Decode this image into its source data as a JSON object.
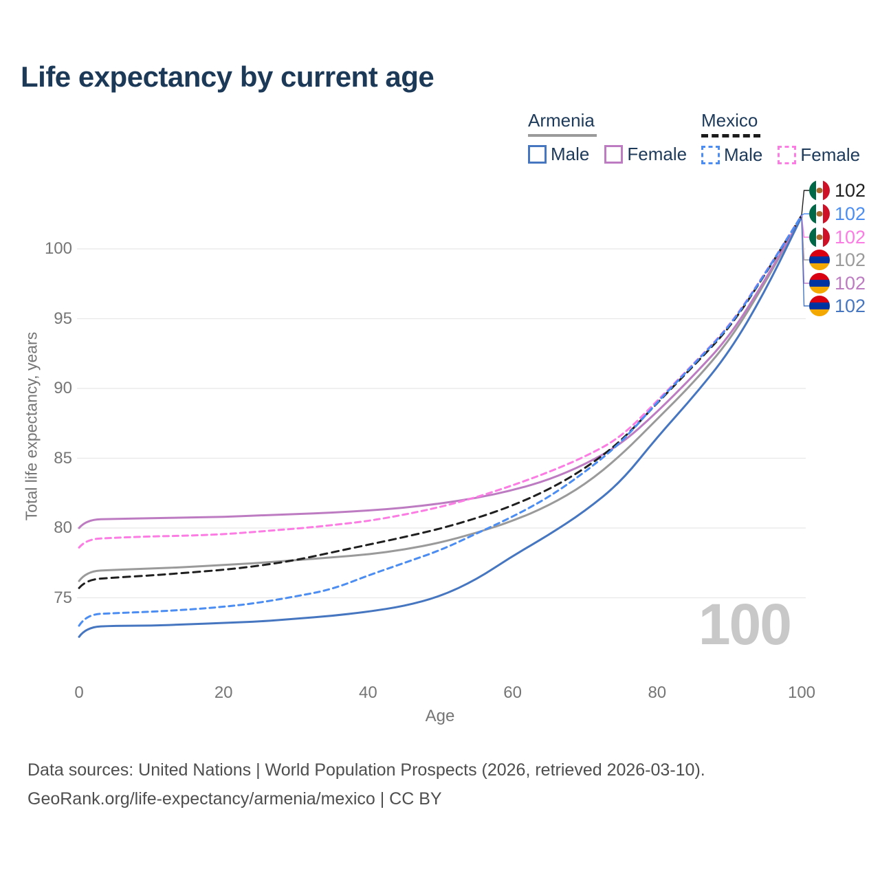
{
  "title": "Life expectancy by current age",
  "colors": {
    "title": "#1d3958",
    "legend_text": "#1d3a5a",
    "ticks": "#757575",
    "footer": "#4e4e4e",
    "watermark": "#c8c8c8",
    "gridline": "#e8e8e8"
  },
  "legend": {
    "groups": [
      {
        "country": "Armenia",
        "line_style": "solid",
        "underline_color": "#9a9a9a",
        "items": [
          {
            "label": "Male",
            "color": "#4676c0",
            "dashed": false
          },
          {
            "label": "Female",
            "color": "#bd7cc1",
            "dashed": false
          }
        ]
      },
      {
        "country": "Mexico",
        "line_style": "dashed",
        "underline_color": "#1c1c1c",
        "items": [
          {
            "label": "Male",
            "color": "#4c8df2",
            "dashed": true
          },
          {
            "label": "Female",
            "color": "#fb7ce2",
            "dashed": true
          }
        ]
      }
    ]
  },
  "chart_data": {
    "type": "line",
    "title": "Life expectancy by current age",
    "xlabel": "Age",
    "ylabel": "Total life expectancy, years",
    "xlim": [
      0,
      100
    ],
    "ylim": [
      71,
      103.5
    ],
    "xticks": [
      "0",
      "20",
      "40",
      "60",
      "80",
      "100"
    ],
    "xtick_values": [
      0,
      20,
      40,
      60,
      80,
      100
    ],
    "yticks": [
      "100",
      "95",
      "90",
      "85",
      "80",
      "75"
    ],
    "ytick_values": [
      100,
      95,
      90,
      85,
      80,
      75
    ],
    "grid": "horizontal-only",
    "legend_position": "top-right",
    "watermark": "100",
    "x": [
      0,
      1,
      5,
      10,
      15,
      20,
      25,
      30,
      35,
      40,
      45,
      50,
      55,
      60,
      65,
      70,
      75,
      80,
      85,
      90,
      95,
      100
    ],
    "series": [
      {
        "name": "Armenia Both sexes",
        "country": "Armenia",
        "sex": "both",
        "color": "#9a9a9a",
        "dashed": false,
        "values": [
          76.2,
          76.9,
          77.0,
          77.1,
          77.2,
          77.35,
          77.5,
          77.7,
          77.9,
          78.1,
          78.45,
          78.95,
          79.65,
          80.5,
          81.6,
          83.1,
          85.2,
          87.8,
          90.4,
          93.4,
          97.6,
          102.3
        ]
      },
      {
        "name": "Armenia Female",
        "country": "Armenia",
        "sex": "female",
        "color": "#bd7cc1",
        "dashed": false,
        "values": [
          80.0,
          80.6,
          80.65,
          80.7,
          80.75,
          80.8,
          80.9,
          81.0,
          81.1,
          81.25,
          81.45,
          81.75,
          82.15,
          82.7,
          83.45,
          84.55,
          86.0,
          88.3,
          90.9,
          93.7,
          97.8,
          102.3
        ]
      },
      {
        "name": "Armenia Male",
        "country": "Armenia",
        "sex": "male",
        "color": "#4676c0",
        "dashed": false,
        "values": [
          72.2,
          72.9,
          73.0,
          73.0,
          73.1,
          73.2,
          73.3,
          73.5,
          73.7,
          74.0,
          74.4,
          75.1,
          76.3,
          78.0,
          79.5,
          81.2,
          83.3,
          86.5,
          89.4,
          92.6,
          97.0,
          102.3
        ]
      },
      {
        "name": "Mexico Both sexes",
        "country": "Mexico",
        "sex": "both",
        "color": "#1f1f1f",
        "dashed": true,
        "dash_pattern": "10 7",
        "values": [
          75.7,
          76.3,
          76.45,
          76.6,
          76.8,
          77.0,
          77.3,
          77.7,
          78.25,
          78.8,
          79.35,
          79.95,
          80.7,
          81.6,
          82.75,
          84.25,
          86.2,
          88.95,
          91.6,
          94.3,
          98.2,
          102.4
        ]
      },
      {
        "name": "Mexico Female",
        "country": "Mexico",
        "sex": "female",
        "color": "#fb7ce2",
        "dashed": true,
        "dash_pattern": "8 6",
        "values": [
          78.6,
          79.2,
          79.3,
          79.4,
          79.45,
          79.55,
          79.75,
          79.95,
          80.2,
          80.5,
          80.95,
          81.5,
          82.2,
          83.05,
          84.0,
          85.1,
          86.5,
          89.1,
          91.75,
          94.45,
          98.3,
          102.4
        ]
      },
      {
        "name": "Mexico Male",
        "country": "Mexico",
        "sex": "male",
        "color": "#4c8df2",
        "dashed": true,
        "dash_pattern": "8 6",
        "values": [
          73.0,
          73.8,
          73.9,
          74.0,
          74.15,
          74.35,
          74.65,
          75.1,
          75.6,
          76.6,
          77.5,
          78.4,
          79.6,
          80.8,
          82.2,
          84.0,
          86.1,
          89.0,
          91.7,
          94.4,
          98.25,
          102.4
        ]
      }
    ]
  },
  "end_labels": [
    {
      "flag": "mexico",
      "series": "Mexico Both sexes",
      "value": "102",
      "color": "#1f1f1f"
    },
    {
      "flag": "mexico",
      "series": "Mexico Male",
      "value": "102",
      "color": "#4c8df2"
    },
    {
      "flag": "mexico",
      "series": "Mexico Female",
      "value": "102",
      "color": "#fb7ce2"
    },
    {
      "flag": "armenia",
      "series": "Armenia Both sexes",
      "value": "102",
      "color": "#9a9a9a"
    },
    {
      "flag": "armenia",
      "series": "Armenia Female",
      "value": "102",
      "color": "#bd7cc1"
    },
    {
      "flag": "armenia",
      "series": "Armenia Male",
      "value": "102",
      "color": "#4676c0"
    }
  ],
  "flag_colors": {
    "armenia": [
      "#d90012",
      "#0033a0",
      "#f2a800"
    ],
    "mexico": [
      "#006847",
      "#ffffff",
      "#ce1126"
    ],
    "mexico_emblem": "#a9682c"
  },
  "footer": {
    "line1": "Data sources: United Nations | World Population Prospects (2026, retrieved 2026-03-10).",
    "line2": "GeoRank.org/life-expectancy/armenia/mexico | CC BY"
  }
}
